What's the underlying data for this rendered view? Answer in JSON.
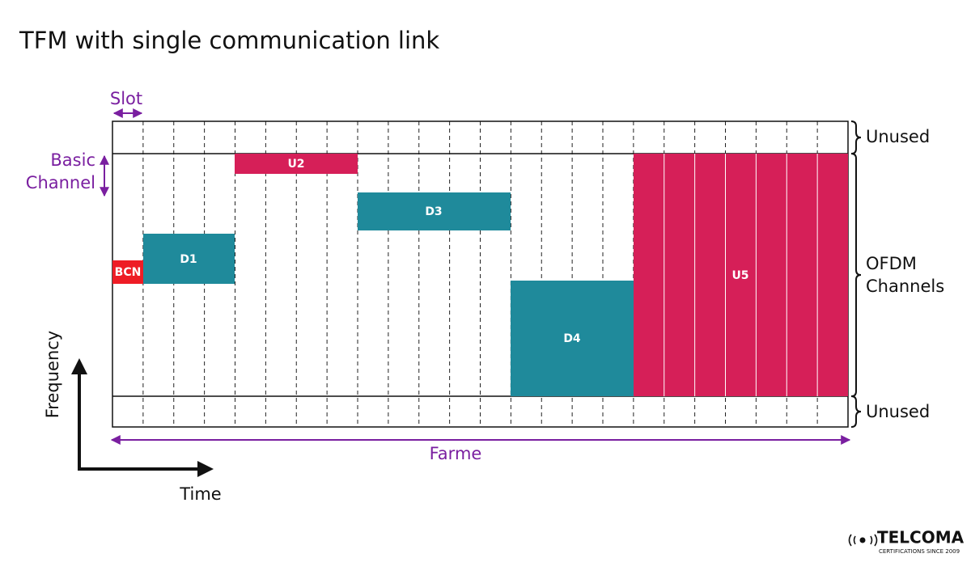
{
  "title": "TFM with single communication link",
  "labels": {
    "slot": "Slot",
    "basic_channel": [
      "Basic",
      "Channel"
    ],
    "unused_top": "Unused",
    "ofdm_channels": [
      "OFDM",
      "Channels"
    ],
    "unused_bottom": "Unused",
    "frame": "Farme",
    "frequency": "Frequency",
    "time": "Time"
  },
  "blocks": {
    "bcn": "BCN",
    "d1": "D1",
    "u2": "U2",
    "d3": "D3",
    "d4": "D4",
    "u5": "U5"
  },
  "logo": {
    "name": "TELCOMA",
    "tagline": "CERTIFICATIONS SINCE 2009"
  }
}
